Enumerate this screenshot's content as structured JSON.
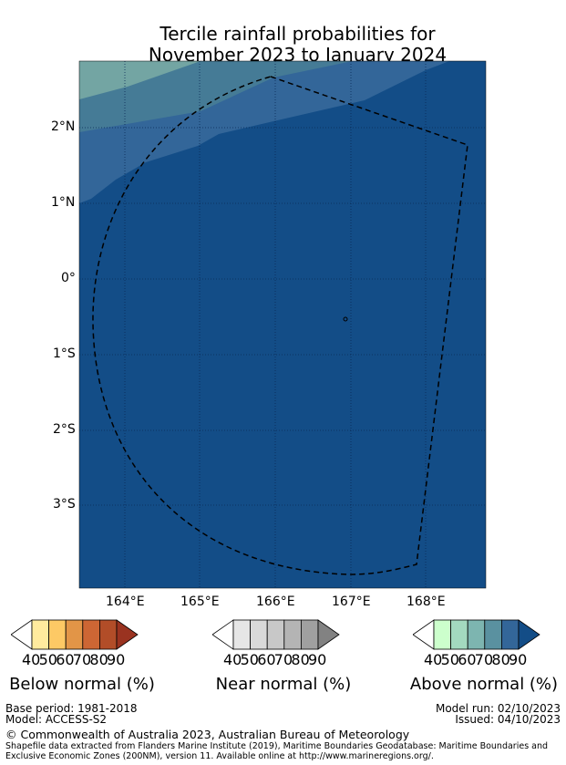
{
  "title": {
    "line1": "Tercile rainfall probabilities for",
    "line2": "November 2023 to January 2024"
  },
  "map": {
    "lat_ticks": [
      "2°N",
      "1°N",
      "0°",
      "1°S",
      "2°S",
      "3°S"
    ],
    "lon_ticks": [
      "164°E",
      "165°E",
      "166°E",
      "167°E",
      "168°E"
    ],
    "colors": {
      "ocean": "#134d87",
      "band80": "#336699",
      "band70": "#457b96",
      "band60": "#73a5a3"
    }
  },
  "colorbars": [
    {
      "label": "Below normal (%)",
      "ticks": [
        "40",
        "50",
        "60",
        "70",
        "80",
        "90"
      ],
      "colors": [
        "#ffffff",
        "#ffeb9e",
        "#fdc965",
        "#e29547",
        "#cd6634",
        "#b24d28",
        "#9a3320"
      ]
    },
    {
      "label": "Near normal (%)",
      "ticks": [
        "40",
        "50",
        "60",
        "70",
        "80",
        "90"
      ],
      "colors": [
        "#ffffff",
        "#e6e6e6",
        "#d9d9d9",
        "#c8c8c8",
        "#b4b4b4",
        "#a0a0a0",
        "#828282"
      ]
    },
    {
      "label": "Above normal (%)",
      "ticks": [
        "40",
        "50",
        "60",
        "70",
        "80",
        "90"
      ],
      "colors": [
        "#ffffff",
        "#ccffcc",
        "#a3d9bf",
        "#7db5b0",
        "#5a91a0",
        "#336699",
        "#134d87"
      ]
    }
  ],
  "footer": {
    "base_period": "Base period: 1981-2018",
    "model": "Model: ACCESS-S2",
    "model_run": "Model run: 02/10/2023",
    "issued": "Issued: 04/10/2023",
    "copyright": "© Commonwealth of Australia 2023, Australian Bureau of Meteorology",
    "shapefile1": "Shapefile data extracted from Flanders Marine Institute (2019), Maritime Boundaries Geodatabase: Maritime Boundaries and",
    "shapefile2": "Exclusive Economic Zones (200NM), version 11. Available online at http://www.marineregions.org/."
  }
}
